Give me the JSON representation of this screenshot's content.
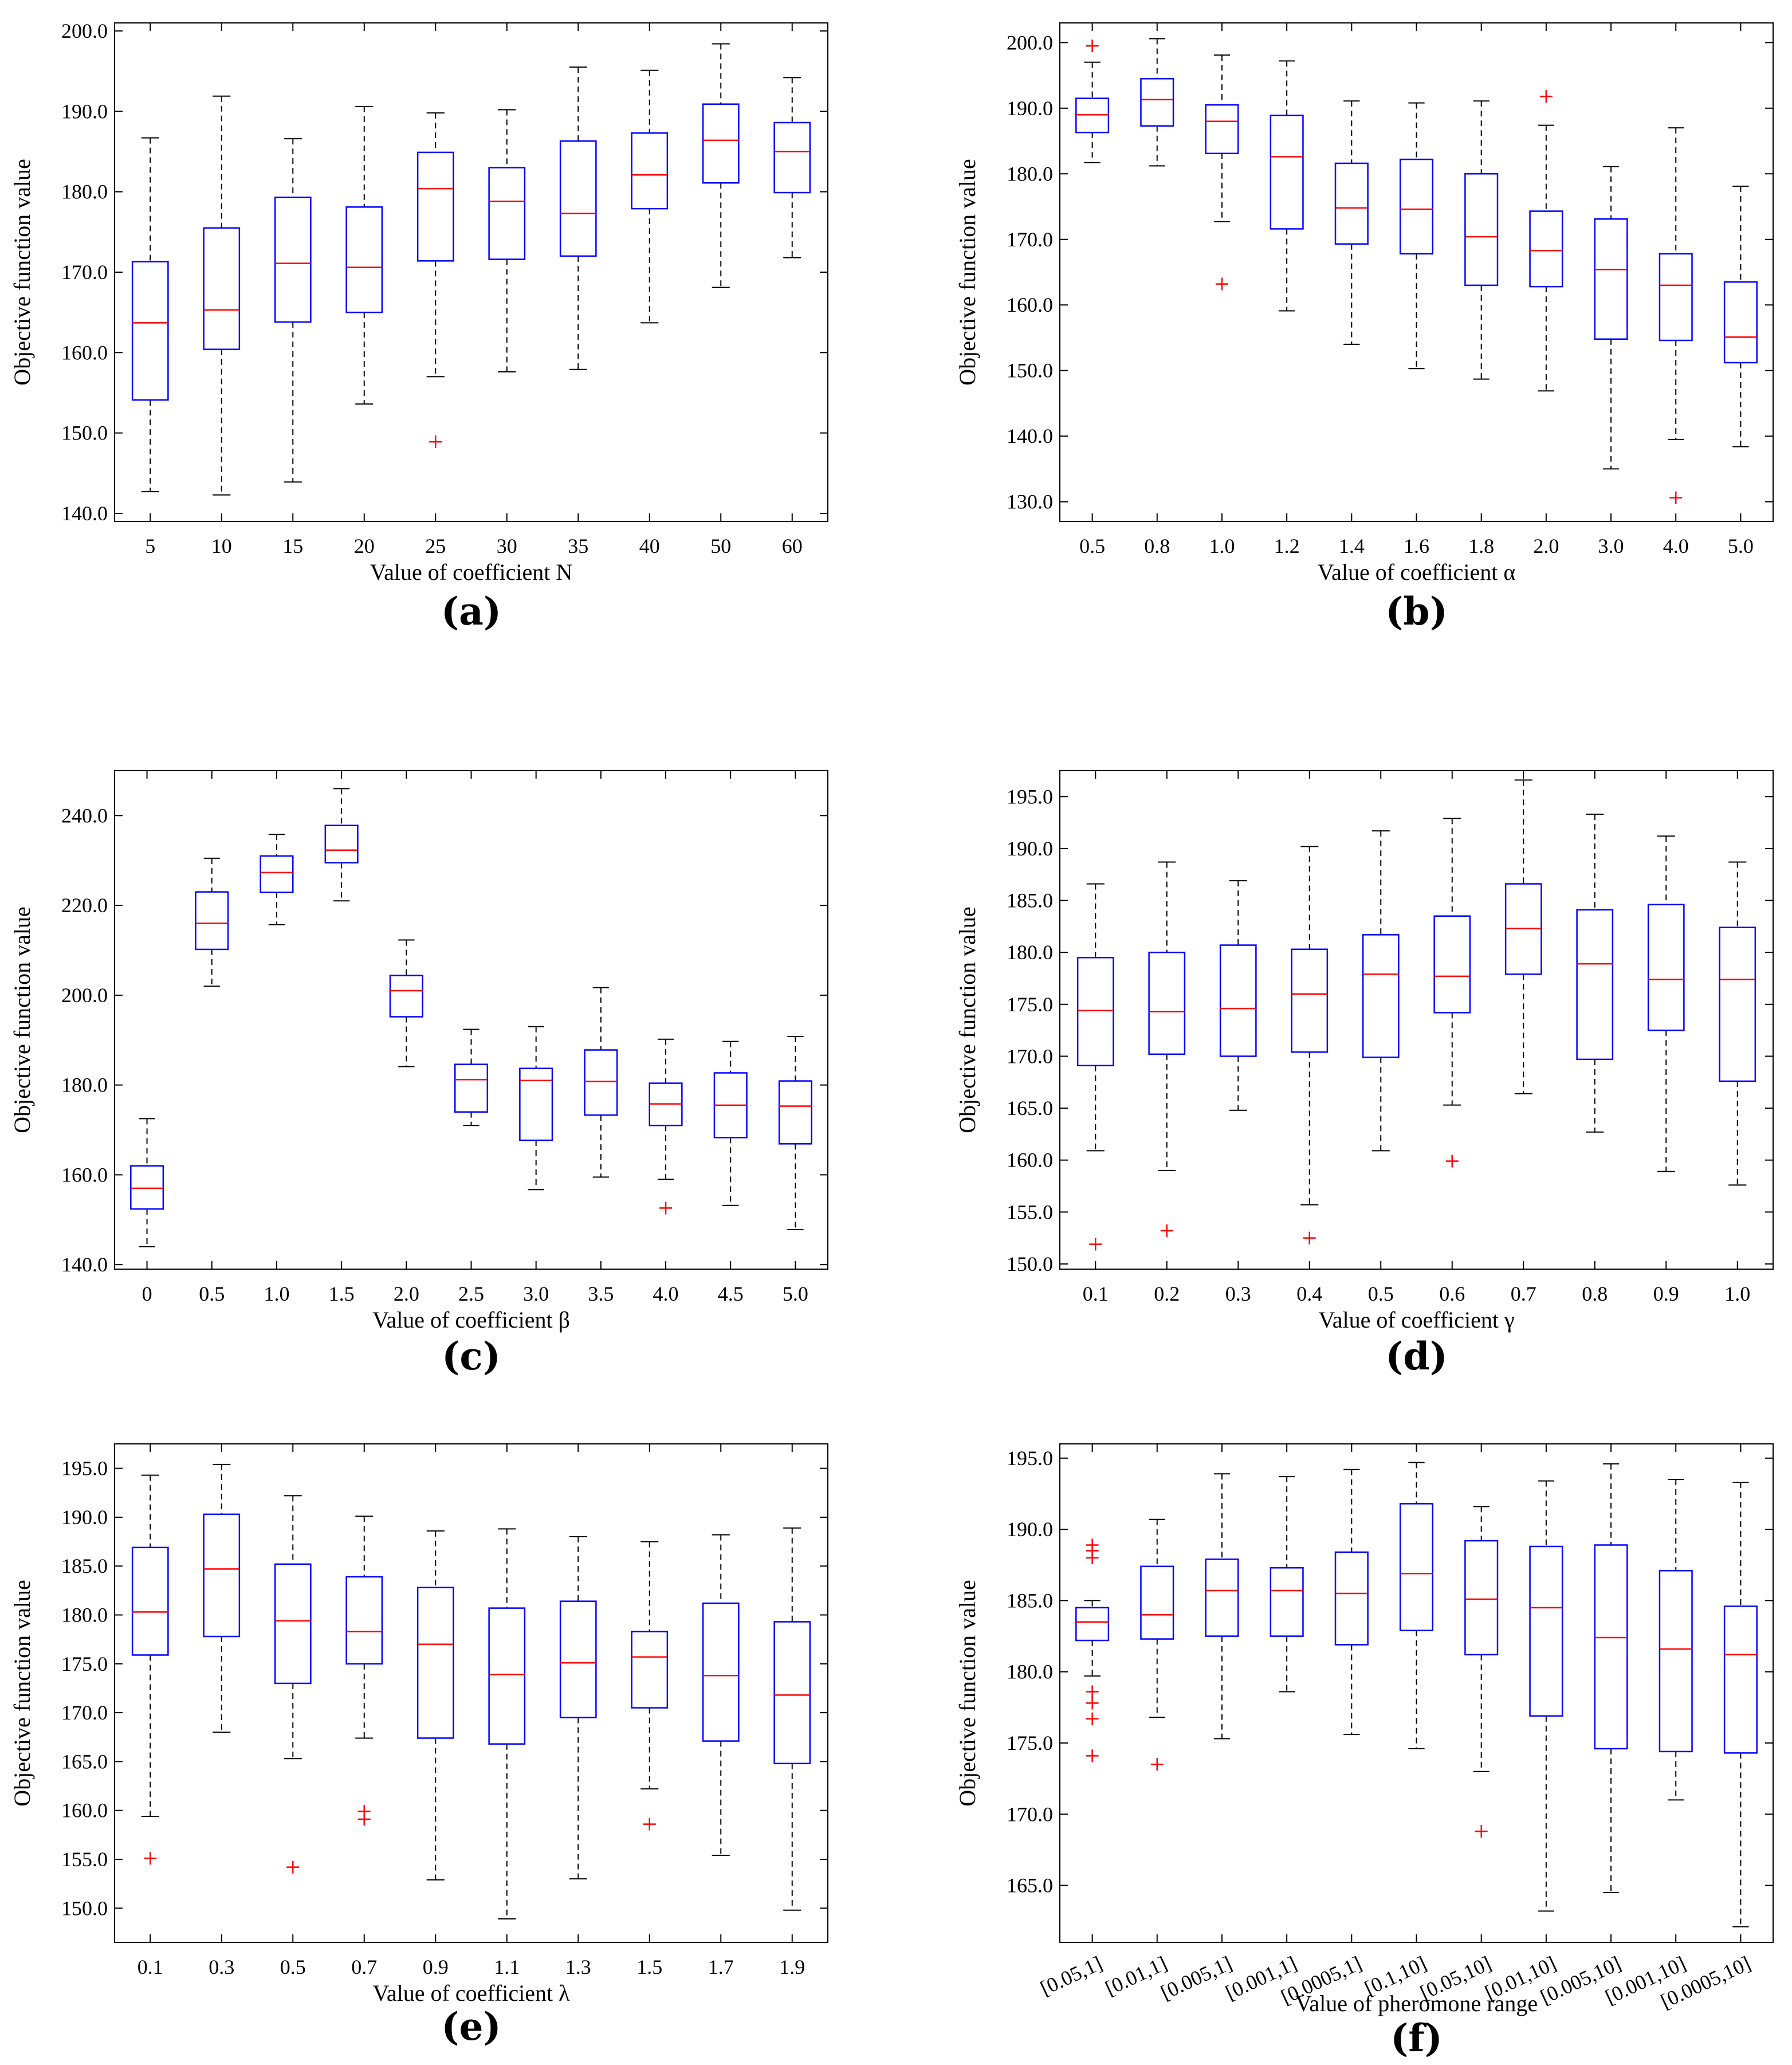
{
  "colors": {
    "box": "#0000ff",
    "median": "#ff0000",
    "whisker": "#000000",
    "outlier": "#ff0000",
    "frame": "#000000"
  },
  "chart_data": [
    {
      "type": "boxplot",
      "panel": "(a)",
      "xlabel": "Value of coefficient N",
      "ylabel": "Objective function value",
      "ylim": [
        139,
        201
      ],
      "yticks": [
        140,
        150,
        160,
        170,
        180,
        190,
        200
      ],
      "ytick_labels": [
        "140.0",
        "150.0",
        "160.0",
        "170.0",
        "180.0",
        "190.0",
        "200.0"
      ],
      "categories": [
        "5",
        "10",
        "15",
        "20",
        "25",
        "30",
        "35",
        "40",
        "50",
        "60"
      ],
      "boxes": [
        {
          "whislo": 142.7,
          "q1": 154.1,
          "med": 163.7,
          "q3": 171.3,
          "whishi": 186.7,
          "fliers": []
        },
        {
          "whislo": 142.3,
          "q1": 160.4,
          "med": 165.3,
          "q3": 175.5,
          "whishi": 191.9,
          "fliers": []
        },
        {
          "whislo": 143.9,
          "q1": 163.8,
          "med": 171.1,
          "q3": 179.3,
          "whishi": 186.6,
          "fliers": []
        },
        {
          "whislo": 153.6,
          "q1": 165.0,
          "med": 170.6,
          "q3": 178.1,
          "whishi": 190.6,
          "fliers": []
        },
        {
          "whislo": 157.0,
          "q1": 171.4,
          "med": 180.4,
          "q3": 184.9,
          "whishi": 189.8,
          "fliers": [
            148.9
          ]
        },
        {
          "whislo": 157.6,
          "q1": 171.6,
          "med": 178.8,
          "q3": 183.0,
          "whishi": 190.2,
          "fliers": []
        },
        {
          "whislo": 157.9,
          "q1": 172.0,
          "med": 177.3,
          "q3": 186.3,
          "whishi": 195.5,
          "fliers": []
        },
        {
          "whislo": 163.7,
          "q1": 177.9,
          "med": 182.1,
          "q3": 187.3,
          "whishi": 195.1,
          "fliers": []
        },
        {
          "whislo": 168.1,
          "q1": 181.1,
          "med": 186.4,
          "q3": 190.9,
          "whishi": 198.4,
          "fliers": []
        },
        {
          "whislo": 171.8,
          "q1": 179.9,
          "med": 185.0,
          "q3": 188.6,
          "whishi": 194.2,
          "fliers": []
        }
      ]
    },
    {
      "type": "boxplot",
      "panel": "(b)",
      "xlabel": "Value of coefficient α",
      "ylabel": "Objective function value",
      "ylim": [
        127,
        203
      ],
      "yticks": [
        130,
        140,
        150,
        160,
        170,
        180,
        190,
        200
      ],
      "ytick_labels": [
        "130.0",
        "140.0",
        "150.0",
        "160.0",
        "170.0",
        "180.0",
        "190.0",
        "200.0"
      ],
      "categories": [
        "0.5",
        "0.8",
        "1.0",
        "1.2",
        "1.4",
        "1.6",
        "1.8",
        "2.0",
        "3.0",
        "4.0",
        "5.0"
      ],
      "boxes": [
        {
          "whislo": 181.7,
          "q1": 186.3,
          "med": 189.0,
          "q3": 191.5,
          "whishi": 197.0,
          "fliers": [
            199.5
          ]
        },
        {
          "whislo": 181.2,
          "q1": 187.3,
          "med": 191.3,
          "q3": 194.5,
          "whishi": 200.6,
          "fliers": []
        },
        {
          "whislo": 172.7,
          "q1": 183.1,
          "med": 188.0,
          "q3": 190.5,
          "whishi": 198.1,
          "fliers": [
            163.2
          ]
        },
        {
          "whislo": 159.1,
          "q1": 171.6,
          "med": 182.6,
          "q3": 188.9,
          "whishi": 197.2,
          "fliers": []
        },
        {
          "whislo": 154.0,
          "q1": 169.3,
          "med": 174.8,
          "q3": 181.6,
          "whishi": 191.1,
          "fliers": []
        },
        {
          "whislo": 150.3,
          "q1": 167.8,
          "med": 174.6,
          "q3": 182.2,
          "whishi": 190.8,
          "fliers": []
        },
        {
          "whislo": 148.7,
          "q1": 163.0,
          "med": 170.4,
          "q3": 180.0,
          "whishi": 191.1,
          "fliers": []
        },
        {
          "whislo": 146.9,
          "q1": 162.8,
          "med": 168.3,
          "q3": 174.3,
          "whishi": 187.4,
          "fliers": [
            191.8
          ]
        },
        {
          "whislo": 135.0,
          "q1": 154.8,
          "med": 165.4,
          "q3": 173.1,
          "whishi": 181.1,
          "fliers": []
        },
        {
          "whislo": 139.5,
          "q1": 154.6,
          "med": 163.0,
          "q3": 167.8,
          "whishi": 187.0,
          "fliers": [
            130.6
          ]
        },
        {
          "whislo": 138.4,
          "q1": 151.2,
          "med": 155.1,
          "q3": 163.5,
          "whishi": 178.1,
          "fliers": []
        }
      ]
    },
    {
      "type": "boxplot",
      "panel": "(c)",
      "xlabel": "Value of coefficient β",
      "ylabel": "Objective function value",
      "ylim": [
        139,
        250
      ],
      "yticks": [
        140,
        160,
        180,
        200,
        220,
        240
      ],
      "ytick_labels": [
        "140.0",
        "160.0",
        "180.0",
        "200.0",
        "220.0",
        "240.0"
      ],
      "categories": [
        "0",
        "0.5",
        "1.0",
        "1.5",
        "2.0",
        "2.5",
        "3.0",
        "3.5",
        "4.0",
        "4.5",
        "5.0"
      ],
      "boxes": [
        {
          "whislo": 144.0,
          "q1": 152.4,
          "med": 157.0,
          "q3": 162.0,
          "whishi": 172.5,
          "fliers": []
        },
        {
          "whislo": 202.0,
          "q1": 210.2,
          "med": 216.0,
          "q3": 223.0,
          "whishi": 230.5,
          "fliers": []
        },
        {
          "whislo": 215.7,
          "q1": 222.9,
          "med": 227.3,
          "q3": 231.0,
          "whishi": 235.8,
          "fliers": []
        },
        {
          "whislo": 221.0,
          "q1": 229.5,
          "med": 232.3,
          "q3": 237.8,
          "whishi": 246.0,
          "fliers": []
        },
        {
          "whislo": 184.1,
          "q1": 195.2,
          "med": 201.0,
          "q3": 204.4,
          "whishi": 212.3,
          "fliers": []
        },
        {
          "whislo": 171.0,
          "q1": 174.0,
          "med": 181.2,
          "q3": 184.6,
          "whishi": 192.4,
          "fliers": []
        },
        {
          "whislo": 156.7,
          "q1": 167.7,
          "med": 181.0,
          "q3": 183.7,
          "whishi": 193.0,
          "fliers": []
        },
        {
          "whislo": 159.5,
          "q1": 173.3,
          "med": 180.8,
          "q3": 187.8,
          "whishi": 201.7,
          "fliers": []
        },
        {
          "whislo": 159.0,
          "q1": 171.0,
          "med": 175.8,
          "q3": 180.4,
          "whishi": 190.2,
          "fliers": [
            152.6
          ]
        },
        {
          "whislo": 153.2,
          "q1": 168.3,
          "med": 175.5,
          "q3": 182.7,
          "whishi": 189.7,
          "fliers": []
        },
        {
          "whislo": 147.8,
          "q1": 166.9,
          "med": 175.3,
          "q3": 180.9,
          "whishi": 190.8,
          "fliers": []
        }
      ]
    },
    {
      "type": "boxplot",
      "panel": "(d)",
      "xlabel": "Value of coefficient γ",
      "ylabel": "Objective function value",
      "ylim": [
        149.5,
        197.5
      ],
      "yticks": [
        150,
        155,
        160,
        165,
        170,
        175,
        180,
        185,
        190,
        195
      ],
      "ytick_labels": [
        "150.0",
        "155.0",
        "160.0",
        "165.0",
        "170.0",
        "175.0",
        "180.0",
        "185.0",
        "190.0",
        "195.0"
      ],
      "categories": [
        "0.1",
        "0.2",
        "0.3",
        "0.4",
        "0.5",
        "0.6",
        "0.7",
        "0.8",
        "0.9",
        "1.0"
      ],
      "boxes": [
        {
          "whislo": 160.9,
          "q1": 169.1,
          "med": 174.4,
          "q3": 179.5,
          "whishi": 186.6,
          "fliers": [
            151.9
          ]
        },
        {
          "whislo": 159.0,
          "q1": 170.2,
          "med": 174.3,
          "q3": 180.0,
          "whishi": 188.7,
          "fliers": [
            153.2
          ]
        },
        {
          "whislo": 164.8,
          "q1": 170.0,
          "med": 174.6,
          "q3": 180.7,
          "whishi": 186.9,
          "fliers": []
        },
        {
          "whislo": 155.7,
          "q1": 170.4,
          "med": 176.0,
          "q3": 180.3,
          "whishi": 190.2,
          "fliers": [
            152.5
          ]
        },
        {
          "whislo": 160.9,
          "q1": 169.9,
          "med": 177.9,
          "q3": 181.7,
          "whishi": 191.7,
          "fliers": []
        },
        {
          "whislo": 165.3,
          "q1": 174.2,
          "med": 177.7,
          "q3": 183.5,
          "whishi": 192.9,
          "fliers": [
            159.9
          ]
        },
        {
          "whislo": 166.4,
          "q1": 177.9,
          "med": 182.3,
          "q3": 186.6,
          "whishi": 196.6,
          "fliers": []
        },
        {
          "whislo": 162.7,
          "q1": 169.7,
          "med": 178.9,
          "q3": 184.1,
          "whishi": 193.3,
          "fliers": []
        },
        {
          "whislo": 158.9,
          "q1": 172.5,
          "med": 177.4,
          "q3": 184.6,
          "whishi": 191.2,
          "fliers": []
        },
        {
          "whislo": 157.6,
          "q1": 167.6,
          "med": 177.4,
          "q3": 182.4,
          "whishi": 188.7,
          "fliers": []
        }
      ]
    },
    {
      "type": "boxplot",
      "panel": "(e)",
      "xlabel": "Value of coefficient λ",
      "ylabel": "Objective function value",
      "ylim": [
        146.5,
        197.5
      ],
      "yticks": [
        150,
        155,
        160,
        165,
        170,
        175,
        180,
        185,
        190,
        195
      ],
      "ytick_labels": [
        "150.0",
        "155.0",
        "160.0",
        "165.0",
        "170.0",
        "175.0",
        "180.0",
        "185.0",
        "190.0",
        "195.0"
      ],
      "categories": [
        "0.1",
        "0.3",
        "0.5",
        "0.7",
        "0.9",
        "1.1",
        "1.3",
        "1.5",
        "1.7",
        "1.9"
      ],
      "boxes": [
        {
          "whislo": 159.4,
          "q1": 175.9,
          "med": 180.3,
          "q3": 186.9,
          "whishi": 194.3,
          "fliers": [
            155.1
          ]
        },
        {
          "whislo": 168.0,
          "q1": 177.8,
          "med": 184.7,
          "q3": 190.3,
          "whishi": 195.4,
          "fliers": []
        },
        {
          "whislo": 165.3,
          "q1": 173.0,
          "med": 179.4,
          "q3": 185.2,
          "whishi": 192.2,
          "fliers": [
            154.2
          ]
        },
        {
          "whislo": 167.4,
          "q1": 175.0,
          "med": 178.3,
          "q3": 183.9,
          "whishi": 190.1,
          "fliers": [
            159.9,
            159.1
          ]
        },
        {
          "whislo": 152.9,
          "q1": 167.4,
          "med": 177.0,
          "q3": 182.8,
          "whishi": 188.6,
          "fliers": []
        },
        {
          "whislo": 148.9,
          "q1": 166.8,
          "med": 173.9,
          "q3": 180.7,
          "whishi": 188.8,
          "fliers": []
        },
        {
          "whislo": 153.0,
          "q1": 169.5,
          "med": 175.1,
          "q3": 181.4,
          "whishi": 188.0,
          "fliers": []
        },
        {
          "whislo": 162.2,
          "q1": 170.5,
          "med": 175.7,
          "q3": 178.3,
          "whishi": 187.5,
          "fliers": [
            158.6
          ]
        },
        {
          "whislo": 155.4,
          "q1": 167.1,
          "med": 173.8,
          "q3": 181.2,
          "whishi": 188.2,
          "fliers": []
        },
        {
          "whislo": 149.8,
          "q1": 164.8,
          "med": 171.8,
          "q3": 179.3,
          "whishi": 188.9,
          "fliers": []
        }
      ]
    },
    {
      "type": "boxplot",
      "panel": "(f)",
      "xlabel": "Value of pheromone range",
      "ylabel": "Objective function value",
      "ylim": [
        161,
        196
      ],
      "yticks": [
        165,
        170,
        175,
        180,
        185,
        190,
        195
      ],
      "ytick_labels": [
        "165.0",
        "170.0",
        "175.0",
        "180.0",
        "185.0",
        "190.0",
        "195.0"
      ],
      "categories": [
        "[0.05,1]",
        "[0.01,1]",
        "[0.005,1]",
        "[0.001,1]",
        "[0.0005,1]",
        "[0.1,10]",
        "[0.05,10]",
        "[0.01,10]",
        "[0.005,10]",
        "[0.001,10]",
        "[0.0005,10]"
      ],
      "boxes": [
        {
          "whislo": 179.7,
          "q1": 182.2,
          "med": 183.5,
          "q3": 184.5,
          "whishi": 185.0,
          "fliers": [
            188.9,
            188.5,
            188.0,
            178.6,
            177.8,
            176.7,
            174.1
          ]
        },
        {
          "whislo": 176.8,
          "q1": 182.3,
          "med": 184.0,
          "q3": 187.4,
          "whishi": 190.7,
          "fliers": [
            173.5
          ]
        },
        {
          "whislo": 175.3,
          "q1": 182.5,
          "med": 185.7,
          "q3": 187.9,
          "whishi": 193.9,
          "fliers": []
        },
        {
          "whislo": 178.6,
          "q1": 182.5,
          "med": 185.7,
          "q3": 187.3,
          "whishi": 193.7,
          "fliers": []
        },
        {
          "whislo": 175.6,
          "q1": 181.9,
          "med": 185.5,
          "q3": 188.4,
          "whishi": 194.2,
          "fliers": []
        },
        {
          "whislo": 174.6,
          "q1": 182.9,
          "med": 186.9,
          "q3": 191.8,
          "whishi": 194.7,
          "fliers": []
        },
        {
          "whislo": 173.0,
          "q1": 181.2,
          "med": 185.1,
          "q3": 189.2,
          "whishi": 191.6,
          "fliers": [
            168.8
          ]
        },
        {
          "whislo": 163.2,
          "q1": 176.9,
          "med": 184.5,
          "q3": 188.8,
          "whishi": 193.4,
          "fliers": []
        },
        {
          "whislo": 164.5,
          "q1": 174.6,
          "med": 182.4,
          "q3": 188.9,
          "whishi": 194.6,
          "fliers": []
        },
        {
          "whislo": 171.0,
          "q1": 174.4,
          "med": 181.6,
          "q3": 187.1,
          "whishi": 193.5,
          "fliers": []
        },
        {
          "whislo": 162.1,
          "q1": 174.3,
          "med": 181.2,
          "q3": 184.6,
          "whishi": 193.3,
          "fliers": []
        }
      ]
    }
  ]
}
